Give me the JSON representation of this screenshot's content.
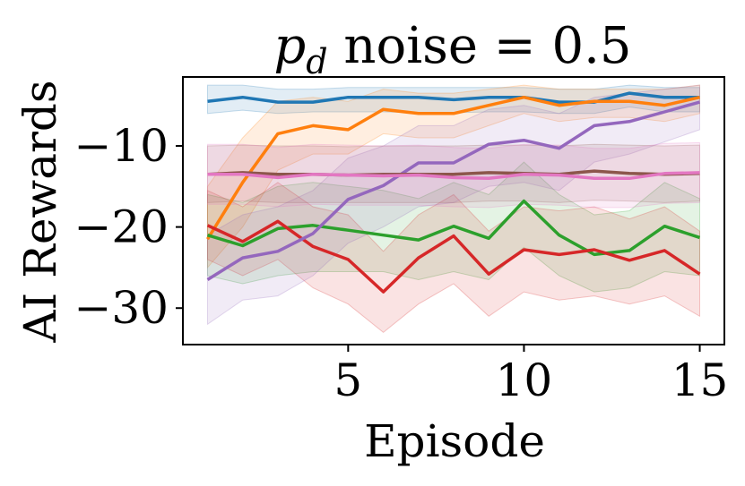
{
  "chart_data": {
    "type": "line",
    "title_symbol": "p",
    "title_subscript": "d",
    "title_rest": " noise = 0.5",
    "xlabel": "Episode",
    "ylabel": "AI Rewards",
    "xlim": [
      0.3,
      15.7
    ],
    "ylim": [
      -34.5,
      -1.5
    ],
    "xticks": [
      5,
      10,
      15
    ],
    "xtick_labels": [
      "5",
      "10",
      "15"
    ],
    "yticks": [
      -10,
      -20,
      -30
    ],
    "ytick_labels": [
      "−10",
      "−20",
      "−30"
    ],
    "x": [
      1,
      2,
      3,
      4,
      5,
      6,
      7,
      8,
      9,
      10,
      11,
      12,
      13,
      14,
      15
    ],
    "series": [
      {
        "name": "series-blue",
        "color": "#1f77b4",
        "values": [
          -4.5,
          -4.0,
          -4.6,
          -4.6,
          -4.0,
          -4.0,
          -4.0,
          -4.3,
          -4.0,
          -4.0,
          -4.6,
          -4.6,
          -3.5,
          -4.0,
          -4.0
        ],
        "lower": [
          -6.0,
          -5.6,
          -6.0,
          -5.8,
          -5.8,
          -5.8,
          -5.9,
          -5.9,
          -5.8,
          -5.8,
          -6.0,
          -6.0,
          -5.2,
          -5.8,
          -5.8
        ],
        "upper": [
          -2.5,
          -2.5,
          -3.0,
          -3.0,
          -2.8,
          -2.8,
          -2.8,
          -2.8,
          -2.8,
          -2.8,
          -3.0,
          -3.0,
          -2.5,
          -2.8,
          -2.8
        ]
      },
      {
        "name": "series-orange",
        "color": "#ff7f0e",
        "values": [
          -21.5,
          -14.5,
          -8.5,
          -7.5,
          -8.0,
          -5.5,
          -6.0,
          -6.0,
          -5.0,
          -4.0,
          -5.0,
          -4.5,
          -4.5,
          -5.0,
          -4.0
        ],
        "lower": [
          -25.0,
          -20.0,
          -13.0,
          -11.0,
          -11.0,
          -8.5,
          -9.0,
          -9.0,
          -7.5,
          -6.0,
          -7.0,
          -6.5,
          -6.5,
          -7.0,
          -6.0
        ],
        "upper": [
          -15.0,
          -9.0,
          -4.5,
          -4.0,
          -4.5,
          -3.0,
          -3.5,
          -3.5,
          -3.0,
          -2.5,
          -3.0,
          -3.0,
          -3.0,
          -3.0,
          -2.5
        ]
      },
      {
        "name": "series-green",
        "color": "#2ca02c",
        "values": [
          -21.0,
          -22.3,
          -20.2,
          -19.8,
          -20.4,
          -21.0,
          -21.6,
          -19.9,
          -21.4,
          -16.8,
          -21.0,
          -23.4,
          -22.9,
          -19.9,
          -21.3
        ],
        "lower": [
          -26.0,
          -27.0,
          -26.0,
          -25.5,
          -25.5,
          -25.5,
          -26.5,
          -25.5,
          -26.5,
          -22.5,
          -26.0,
          -28.0,
          -27.5,
          -25.5,
          -26.0
        ],
        "upper": [
          -16.0,
          -17.0,
          -15.0,
          -14.5,
          -15.0,
          -15.5,
          -16.5,
          -14.5,
          -16.0,
          -12.0,
          -16.0,
          -18.5,
          -18.0,
          -14.5,
          -16.5
        ]
      },
      {
        "name": "series-red",
        "color": "#d62728",
        "values": [
          -19.8,
          -21.8,
          -19.3,
          -22.4,
          -24.0,
          -28.0,
          -23.8,
          -21.1,
          -25.8,
          -22.8,
          -23.4,
          -22.8,
          -24.1,
          -22.9,
          -25.8
        ],
        "lower": [
          -24.0,
          -26.0,
          -24.0,
          -27.5,
          -29.5,
          -33.0,
          -29.5,
          -27.0,
          -31.0,
          -28.0,
          -29.0,
          -28.5,
          -29.5,
          -28.5,
          -31.0
        ],
        "upper": [
          -15.5,
          -17.5,
          -14.5,
          -17.5,
          -18.5,
          -23.0,
          -18.5,
          -16.0,
          -20.5,
          -17.5,
          -18.0,
          -17.5,
          -19.0,
          -17.5,
          -20.5
        ]
      },
      {
        "name": "series-purple",
        "color": "#9467bd",
        "values": [
          -26.5,
          -23.8,
          -23.0,
          -20.8,
          -16.6,
          -14.9,
          -12.1,
          -12.1,
          -9.8,
          -9.3,
          -10.3,
          -7.5,
          -7.0,
          -5.8,
          -4.6
        ],
        "lower": [
          -32.0,
          -29.0,
          -28.5,
          -26.0,
          -22.0,
          -20.0,
          -17.5,
          -17.0,
          -15.0,
          -14.5,
          -15.5,
          -12.0,
          -11.0,
          -9.5,
          -8.0
        ],
        "upper": [
          -21.0,
          -18.5,
          -17.5,
          -15.5,
          -11.5,
          -10.0,
          -7.5,
          -7.5,
          -5.5,
          -5.0,
          -6.0,
          -4.0,
          -3.5,
          -3.0,
          -2.5
        ]
      },
      {
        "name": "series-brown",
        "color": "#8c564b",
        "values": [
          -13.5,
          -13.3,
          -13.5,
          -13.5,
          -13.6,
          -13.5,
          -13.5,
          -13.5,
          -13.3,
          -13.4,
          -13.5,
          -13.1,
          -13.4,
          -13.5,
          -13.4
        ],
        "lower": [
          -17.0,
          -16.8,
          -17.0,
          -17.0,
          -17.0,
          -17.0,
          -17.0,
          -17.0,
          -16.8,
          -16.8,
          -17.0,
          -16.7,
          -16.8,
          -17.0,
          -16.8
        ],
        "upper": [
          -10.0,
          -9.9,
          -10.0,
          -10.0,
          -10.1,
          -10.0,
          -10.0,
          -10.0,
          -9.9,
          -9.9,
          -10.0,
          -9.8,
          -9.9,
          -10.0,
          -9.9
        ]
      },
      {
        "name": "series-pink",
        "color": "#e377c2",
        "values": [
          -13.5,
          -13.5,
          -13.9,
          -13.5,
          -13.6,
          -13.7,
          -13.6,
          -13.9,
          -14.0,
          -13.5,
          -13.6,
          -14.0,
          -14.0,
          -13.4,
          -13.3
        ],
        "lower": [
          -17.2,
          -17.2,
          -17.5,
          -17.2,
          -17.3,
          -17.3,
          -17.3,
          -17.5,
          -17.6,
          -17.2,
          -17.3,
          -17.6,
          -17.6,
          -17.1,
          -17.0
        ],
        "upper": [
          -9.8,
          -9.8,
          -10.2,
          -9.8,
          -9.9,
          -10.0,
          -9.9,
          -10.2,
          -10.3,
          -9.8,
          -9.9,
          -10.3,
          -10.3,
          -9.7,
          -9.6
        ]
      }
    ]
  }
}
